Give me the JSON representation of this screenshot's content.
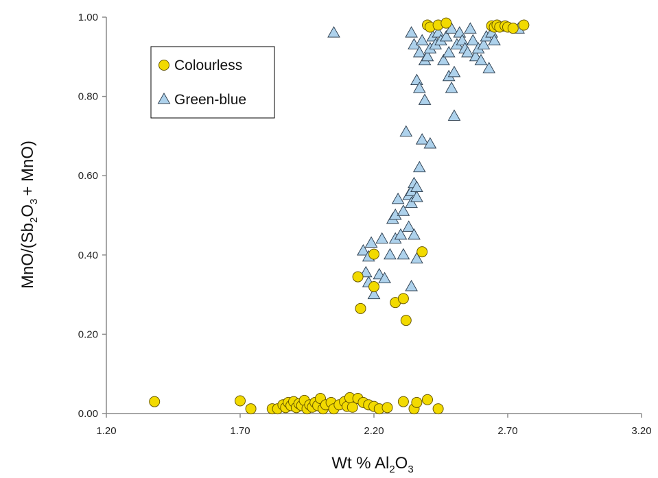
{
  "chart_data": {
    "type": "scatter",
    "xlabel": "Wt % Al",
    "xlabel_sub": "2",
    "xlabel_tail": "O",
    "xlabel_sub2": "3",
    "ylabel": "MnO/(Sb",
    "ylabel_sub": "2",
    "ylabel_mid": "O",
    "ylabel_sub2": "3",
    "ylabel_tail": "+ MnO)",
    "xlim": [
      1.2,
      3.2
    ],
    "ylim": [
      0.0,
      1.0
    ],
    "x_ticks": [
      "1.20",
      "1.70",
      "2.20",
      "2.70",
      "3.20"
    ],
    "y_ticks": [
      "0.00",
      "0.20",
      "0.40",
      "0.60",
      "0.80",
      "1.00"
    ],
    "grid": false,
    "legend_position": "top-left",
    "series": [
      {
        "name": "Colourless",
        "marker": "circle",
        "color": "#F2DA00",
        "edge": "#6a5a00",
        "points": [
          [
            1.38,
            0.03
          ],
          [
            1.7,
            0.032
          ],
          [
            1.74,
            0.012
          ],
          [
            1.82,
            0.012
          ],
          [
            1.84,
            0.012
          ],
          [
            1.86,
            0.022
          ],
          [
            1.87,
            0.015
          ],
          [
            1.88,
            0.028
          ],
          [
            1.89,
            0.02
          ],
          [
            1.9,
            0.03
          ],
          [
            1.91,
            0.015
          ],
          [
            1.92,
            0.025
          ],
          [
            1.93,
            0.02
          ],
          [
            1.94,
            0.033
          ],
          [
            1.95,
            0.012
          ],
          [
            1.96,
            0.022
          ],
          [
            1.97,
            0.016
          ],
          [
            1.98,
            0.028
          ],
          [
            1.99,
            0.02
          ],
          [
            2.0,
            0.038
          ],
          [
            2.01,
            0.012
          ],
          [
            2.02,
            0.022
          ],
          [
            2.04,
            0.028
          ],
          [
            2.05,
            0.012
          ],
          [
            2.07,
            0.022
          ],
          [
            2.09,
            0.03
          ],
          [
            2.1,
            0.018
          ],
          [
            2.11,
            0.04
          ],
          [
            2.12,
            0.016
          ],
          [
            2.14,
            0.038
          ],
          [
            2.16,
            0.028
          ],
          [
            2.18,
            0.022
          ],
          [
            2.2,
            0.018
          ],
          [
            2.22,
            0.012
          ],
          [
            2.25,
            0.015
          ],
          [
            2.31,
            0.03
          ],
          [
            2.35,
            0.012
          ],
          [
            2.36,
            0.028
          ],
          [
            2.4,
            0.035
          ],
          [
            2.44,
            0.012
          ],
          [
            2.14,
            0.345
          ],
          [
            2.15,
            0.265
          ],
          [
            2.2,
            0.402
          ],
          [
            2.2,
            0.32
          ],
          [
            2.28,
            0.28
          ],
          [
            2.31,
            0.29
          ],
          [
            2.32,
            0.235
          ],
          [
            2.38,
            0.408
          ],
          [
            2.4,
            0.98
          ],
          [
            2.41,
            0.975
          ],
          [
            2.44,
            0.98
          ],
          [
            2.47,
            0.985
          ],
          [
            2.64,
            0.978
          ],
          [
            2.65,
            0.975
          ],
          [
            2.66,
            0.98
          ],
          [
            2.67,
            0.975
          ],
          [
            2.69,
            0.978
          ],
          [
            2.7,
            0.975
          ],
          [
            2.72,
            0.972
          ],
          [
            2.76,
            0.98
          ]
        ]
      },
      {
        "name": "Green-blue",
        "marker": "triangle",
        "color": "#AED2EC",
        "edge": "#334455",
        "points": [
          [
            2.05,
            0.96
          ],
          [
            2.16,
            0.41
          ],
          [
            2.17,
            0.355
          ],
          [
            2.18,
            0.395
          ],
          [
            2.18,
            0.33
          ],
          [
            2.19,
            0.43
          ],
          [
            2.2,
            0.3
          ],
          [
            2.22,
            0.35
          ],
          [
            2.23,
            0.44
          ],
          [
            2.24,
            0.34
          ],
          [
            2.26,
            0.4
          ],
          [
            2.27,
            0.49
          ],
          [
            2.28,
            0.5
          ],
          [
            2.28,
            0.44
          ],
          [
            2.29,
            0.54
          ],
          [
            2.3,
            0.45
          ],
          [
            2.31,
            0.51
          ],
          [
            2.31,
            0.4
          ],
          [
            2.32,
            0.71
          ],
          [
            2.33,
            0.55
          ],
          [
            2.33,
            0.47
          ],
          [
            2.34,
            0.56
          ],
          [
            2.34,
            0.53
          ],
          [
            2.34,
            0.32
          ],
          [
            2.35,
            0.58
          ],
          [
            2.35,
            0.45
          ],
          [
            2.36,
            0.57
          ],
          [
            2.36,
            0.545
          ],
          [
            2.36,
            0.39
          ],
          [
            2.37,
            0.62
          ],
          [
            2.38,
            0.69
          ],
          [
            2.41,
            0.68
          ],
          [
            2.36,
            0.84
          ],
          [
            2.37,
            0.82
          ],
          [
            2.39,
            0.79
          ],
          [
            2.34,
            0.96
          ],
          [
            2.35,
            0.93
          ],
          [
            2.37,
            0.91
          ],
          [
            2.38,
            0.94
          ],
          [
            2.39,
            0.89
          ],
          [
            2.4,
            0.9
          ],
          [
            2.41,
            0.92
          ],
          [
            2.42,
            0.95
          ],
          [
            2.43,
            0.93
          ],
          [
            2.44,
            0.96
          ],
          [
            2.45,
            0.94
          ],
          [
            2.46,
            0.89
          ],
          [
            2.47,
            0.95
          ],
          [
            2.48,
            0.91
          ],
          [
            2.48,
            0.85
          ],
          [
            2.49,
            0.82
          ],
          [
            2.49,
            0.97
          ],
          [
            2.5,
            0.86
          ],
          [
            2.5,
            0.75
          ],
          [
            2.51,
            0.93
          ],
          [
            2.52,
            0.96
          ],
          [
            2.53,
            0.94
          ],
          [
            2.54,
            0.92
          ],
          [
            2.55,
            0.91
          ],
          [
            2.56,
            0.97
          ],
          [
            2.57,
            0.94
          ],
          [
            2.58,
            0.9
          ],
          [
            2.59,
            0.92
          ],
          [
            2.6,
            0.89
          ],
          [
            2.61,
            0.93
          ],
          [
            2.62,
            0.95
          ],
          [
            2.63,
            0.87
          ],
          [
            2.64,
            0.96
          ],
          [
            2.65,
            0.94
          ],
          [
            2.67,
            0.975
          ],
          [
            2.74,
            0.97
          ]
        ]
      }
    ]
  }
}
